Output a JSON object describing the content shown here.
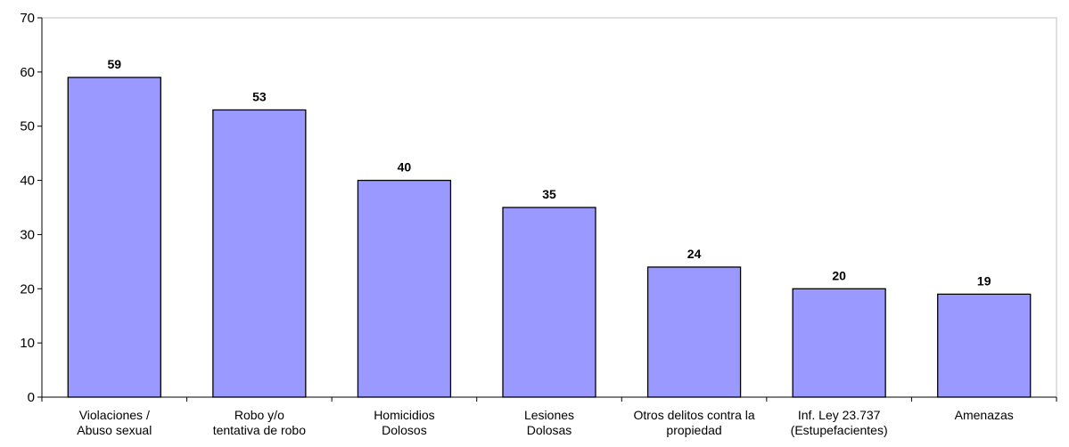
{
  "chart_data": {
    "type": "bar",
    "categories": [
      [
        "Violaciones /",
        "Abuso sexual"
      ],
      [
        "Robo y/o",
        "tentativa de robo"
      ],
      [
        "Homicidios",
        "Dolosos"
      ],
      [
        "Lesiones",
        "Dolosas"
      ],
      [
        "Otros delitos contra la",
        "propiedad"
      ],
      [
        "Inf. Ley 23.737",
        "(Estupefacientes)"
      ],
      [
        "Amenazas"
      ]
    ],
    "values": [
      59,
      53,
      40,
      35,
      24,
      20,
      19
    ],
    "ylim": [
      0,
      70
    ],
    "yticks": [
      0,
      10,
      20,
      30,
      40,
      50,
      60,
      70
    ],
    "title": "",
    "xlabel": "",
    "ylabel": "",
    "grid": false,
    "legend": "none",
    "bar_color": "#9999ff",
    "bar_edge_color": "#000000"
  }
}
